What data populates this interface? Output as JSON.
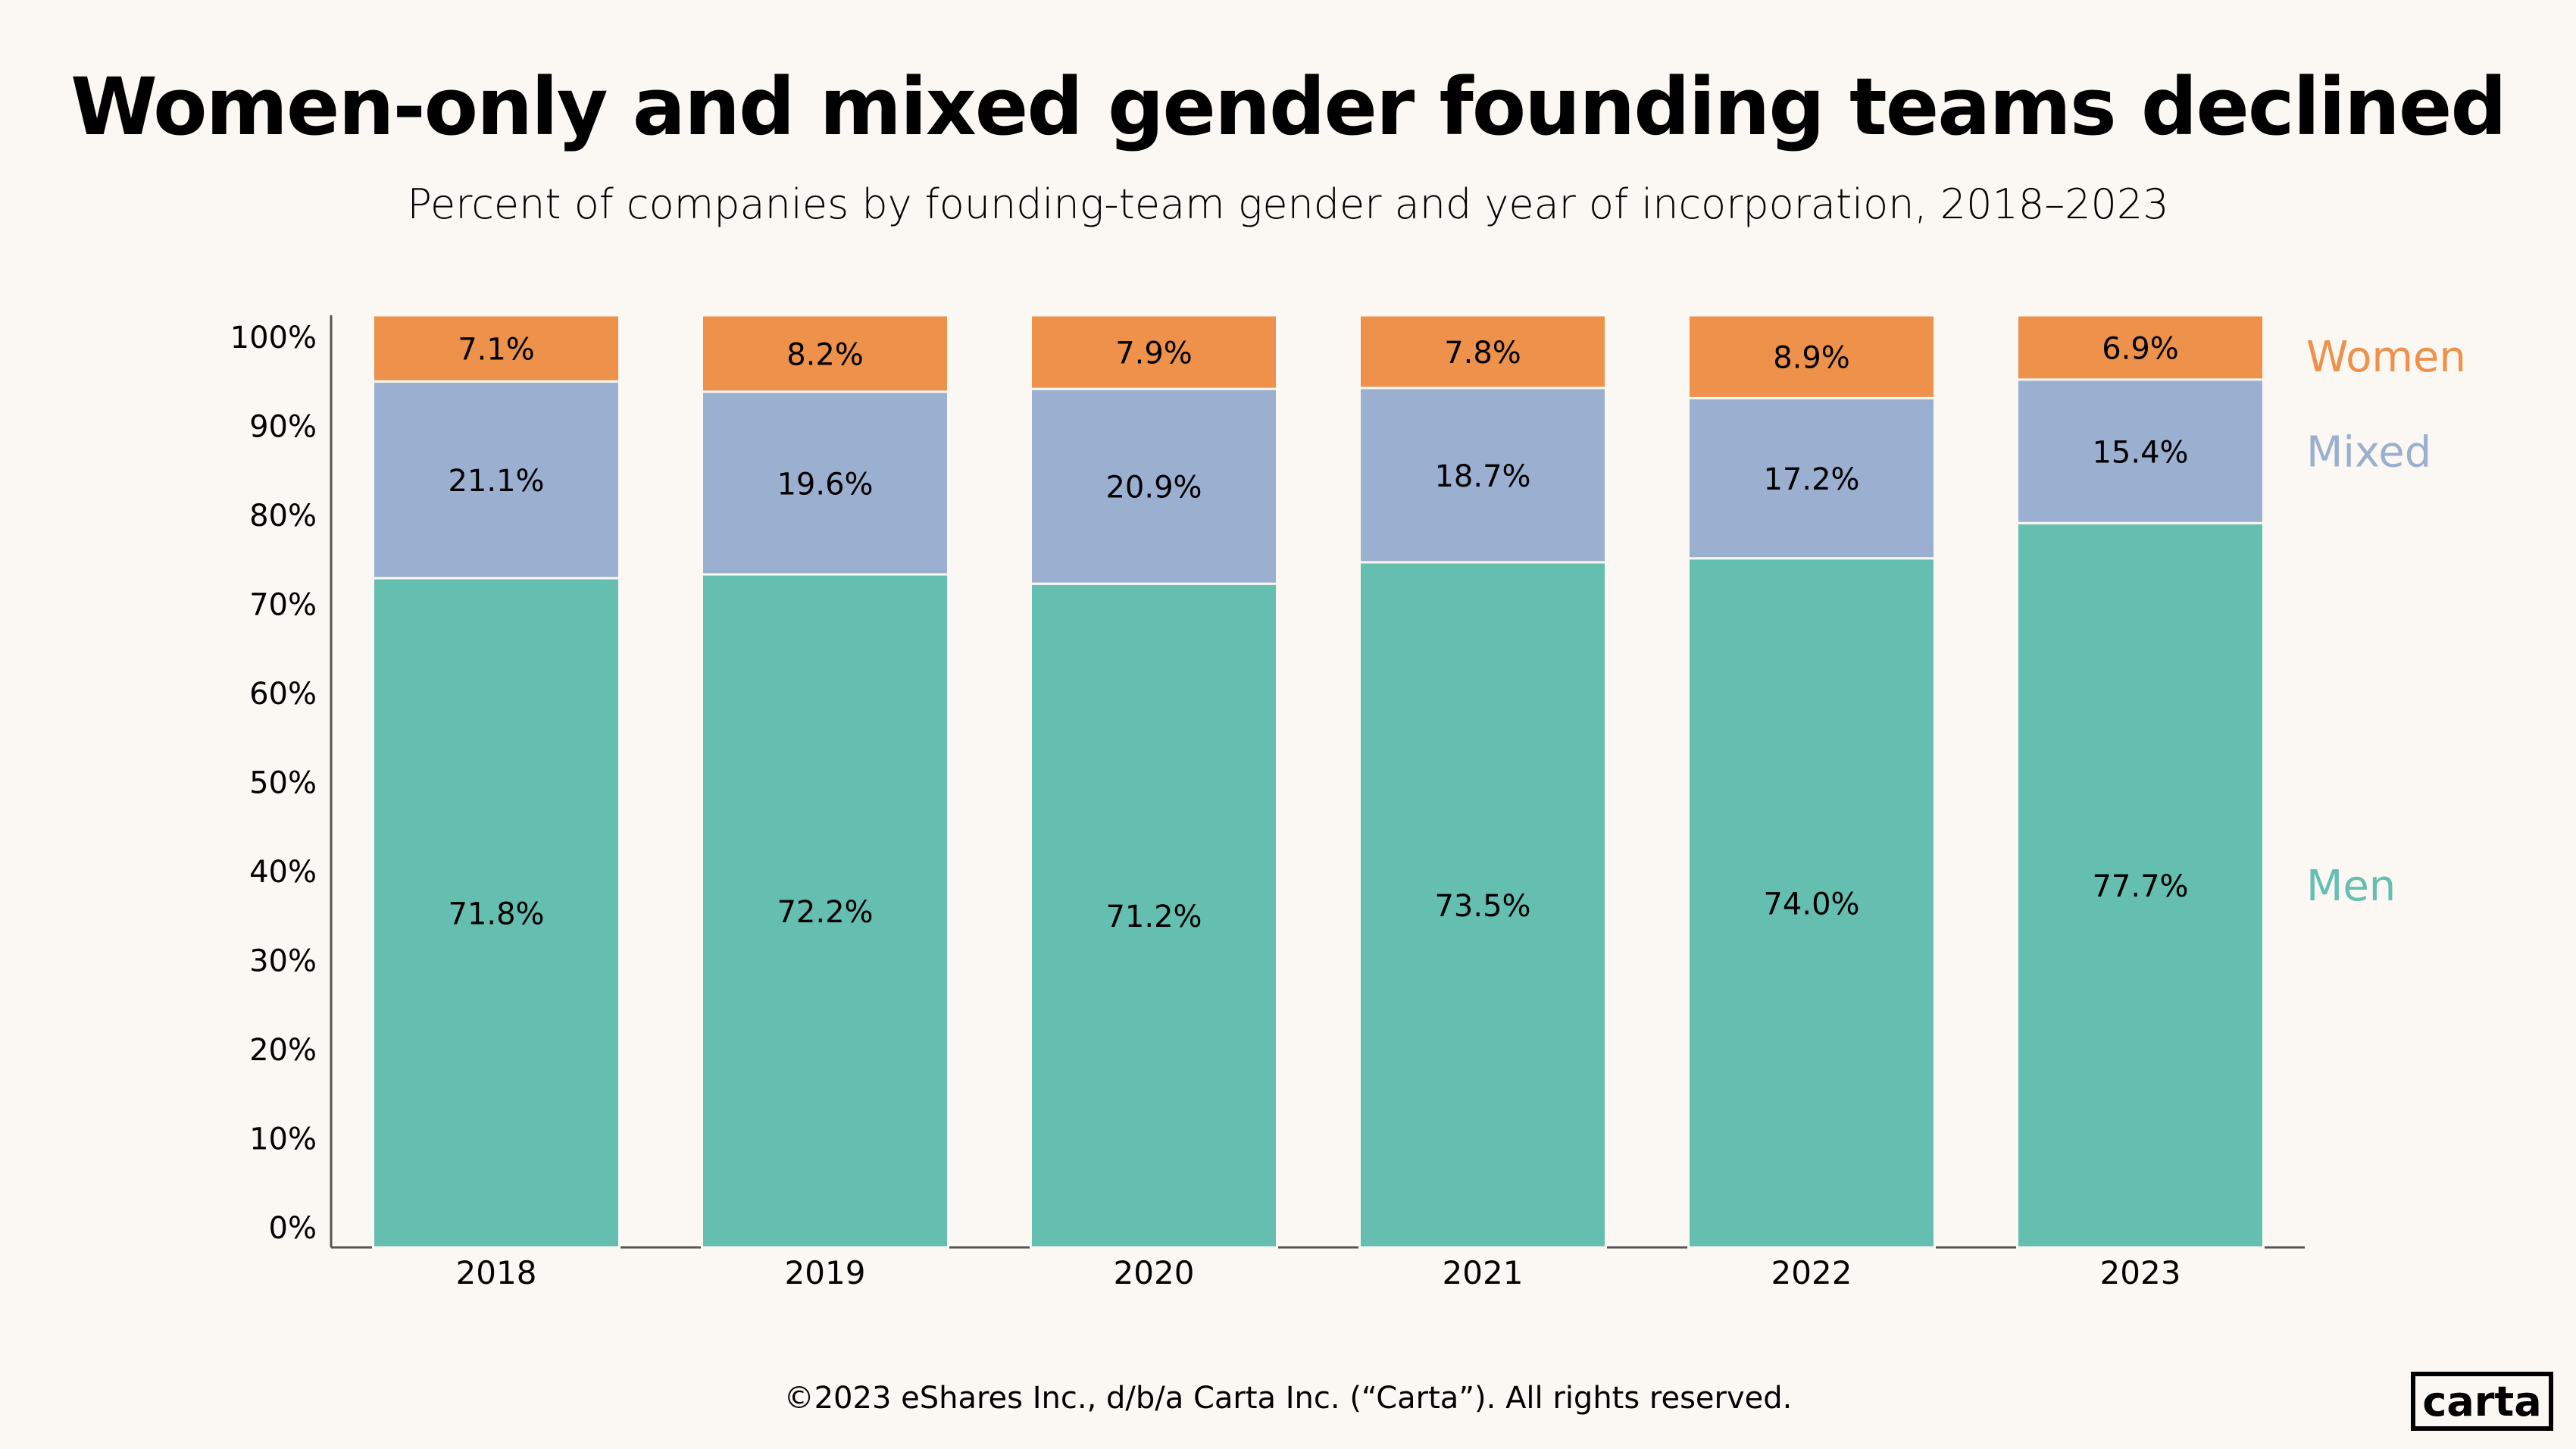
{
  "chart_data": {
    "type": "bar",
    "stacked": true,
    "title": "Women-only and mixed gender founding teams declined",
    "subtitle": "Percent of companies by founding-team gender and year of incorporation, 2018–2023",
    "categories": [
      "2018",
      "2019",
      "2020",
      "2021",
      "2022",
      "2023"
    ],
    "series": [
      {
        "name": "Men",
        "color": "#65BFB1",
        "values": [
          71.8,
          72.2,
          71.2,
          73.5,
          74.0,
          77.7
        ]
      },
      {
        "name": "Mixed",
        "color": "#9BAFD0",
        "values": [
          21.1,
          19.6,
          20.9,
          18.7,
          17.2,
          15.4
        ]
      },
      {
        "name": "Women",
        "color": "#EE914A",
        "values": [
          7.1,
          8.2,
          7.9,
          7.8,
          8.9,
          6.9
        ]
      }
    ],
    "ylim": [
      0,
      100
    ],
    "yticks": [
      "0%",
      "10%",
      "20%",
      "30%",
      "40%",
      "50%",
      "60%",
      "70%",
      "80%",
      "90%",
      "100%"
    ],
    "legend_placement": "right",
    "grid": false
  },
  "footer": "©2023 eShares Inc., d/b/a Carta Inc. (“Carta”). All rights reserved.",
  "logo": "carta"
}
